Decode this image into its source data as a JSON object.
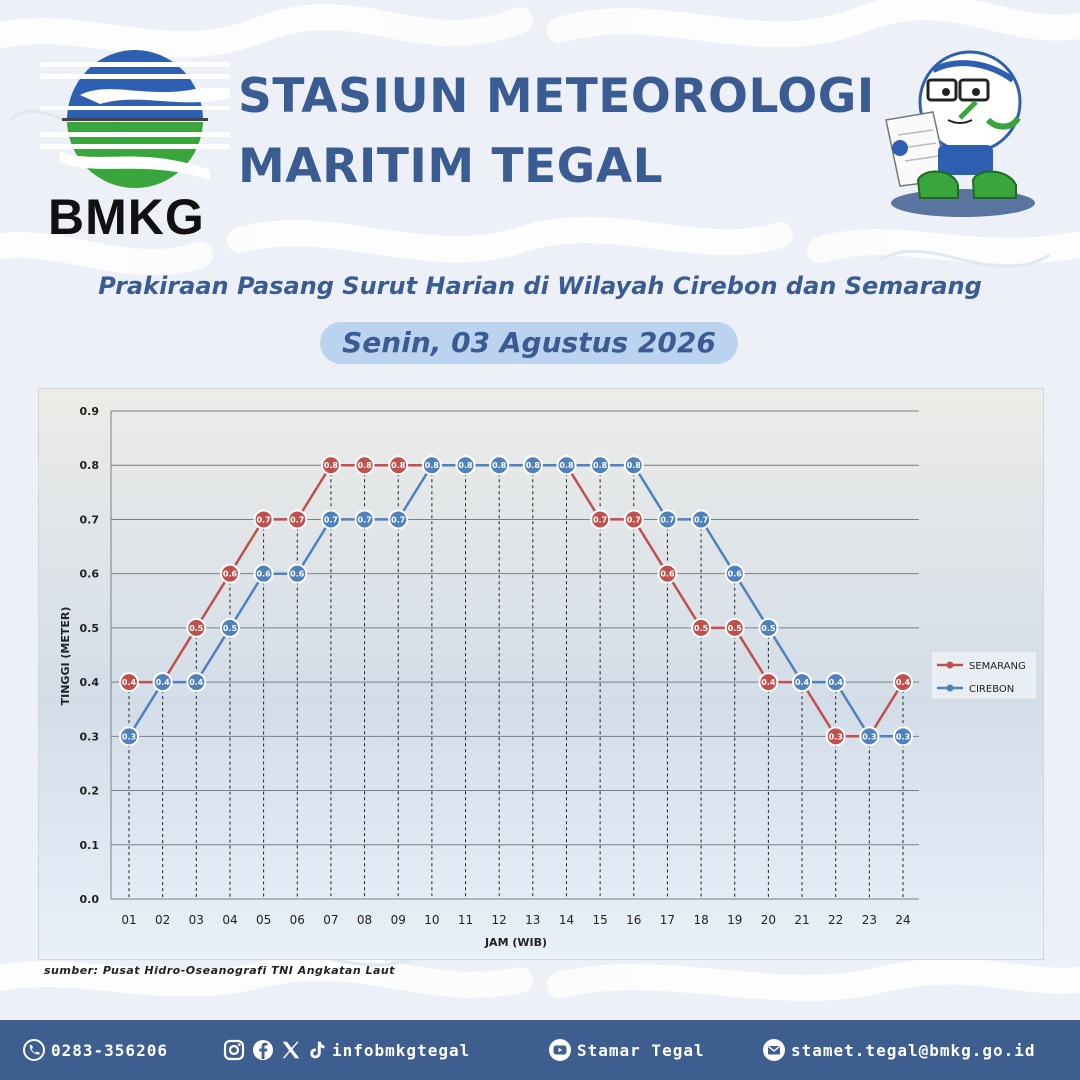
{
  "header": {
    "logo_text": "BMKG",
    "title_line1": "STASIUN METEOROLOGI",
    "title_line2": "MARITIM TEGAL",
    "subtitle": "Prakiraan Pasang Surut Harian di Wilayah Cirebon dan Semarang",
    "date": "Senin, 03 Agustus 2026"
  },
  "colors": {
    "title": "#3b5c92",
    "semarang": "#c0504d",
    "cirebon": "#4f81bd",
    "footer_bg": "#3d5e8f"
  },
  "chart_data": {
    "type": "line",
    "xlabel": "JAM (WIB)",
    "ylabel": "TINGGI (METER)",
    "ylim": [
      0,
      0.9
    ],
    "yticks": [
      "0.0",
      "0.1",
      "0.2",
      "0.3",
      "0.4",
      "0.5",
      "0.6",
      "0.7",
      "0.8",
      "0.9"
    ],
    "grid": true,
    "legend_position": "right",
    "categories": [
      "01",
      "02",
      "03",
      "04",
      "05",
      "06",
      "07",
      "08",
      "09",
      "10",
      "11",
      "12",
      "13",
      "14",
      "15",
      "16",
      "17",
      "18",
      "19",
      "20",
      "21",
      "22",
      "23",
      "24"
    ],
    "series": [
      {
        "name": "SEMARANG",
        "color": "#c0504d",
        "values": [
          0.4,
          0.4,
          0.5,
          0.6,
          0.7,
          0.7,
          0.8,
          0.8,
          0.8,
          0.8,
          0.8,
          0.8,
          0.8,
          0.8,
          0.7,
          0.7,
          0.6,
          0.5,
          0.5,
          0.4,
          0.4,
          0.3,
          0.3,
          0.4
        ]
      },
      {
        "name": "CIREBON",
        "color": "#4f81bd",
        "values": [
          0.3,
          0.4,
          0.4,
          0.5,
          0.6,
          0.6,
          0.7,
          0.7,
          0.7,
          0.8,
          0.8,
          0.8,
          0.8,
          0.8,
          0.8,
          0.8,
          0.7,
          0.7,
          0.6,
          0.5,
          0.4,
          0.4,
          0.3,
          0.3
        ]
      }
    ],
    "source": "sumber: Pusat Hidro-Oseanografi TNI Angkatan Laut"
  },
  "footer": {
    "phone": "0283-356206",
    "social": "infobmkgtegal",
    "youtube": "Stamar Tegal",
    "email": "stamet.tegal@bmkg.go.id"
  }
}
